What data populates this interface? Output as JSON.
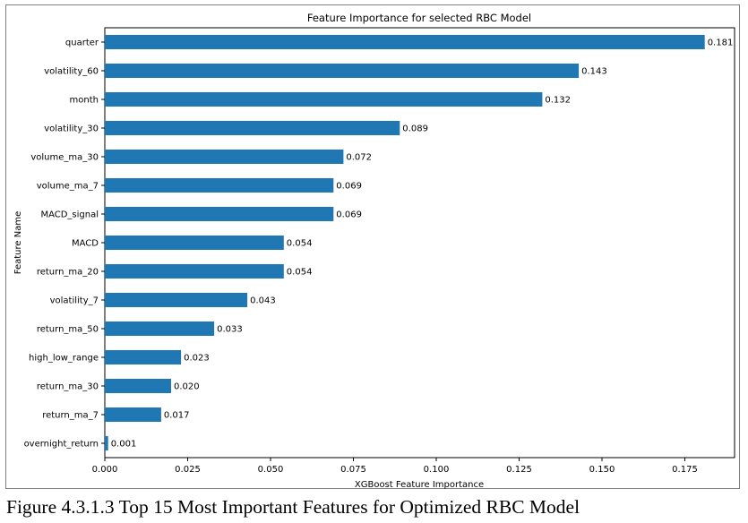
{
  "chart_data": {
    "type": "bar",
    "orientation": "horizontal",
    "title": "Feature Importance for selected RBC Model",
    "xlabel": "XGBoost Feature Importance",
    "ylabel": "Feature Name",
    "categories": [
      "quarter",
      "volatility_60",
      "month",
      "volatility_30",
      "volume_ma_30",
      "volume_ma_7",
      "MACD_signal",
      "MACD",
      "return_ma_20",
      "volatility_7",
      "return_ma_50",
      "high_low_range",
      "return_ma_30",
      "return_ma_7",
      "overnight_return"
    ],
    "values": [
      0.181,
      0.143,
      0.132,
      0.089,
      0.072,
      0.069,
      0.069,
      0.054,
      0.054,
      0.043,
      0.033,
      0.023,
      0.02,
      0.017,
      0.001
    ],
    "data_labels": [
      "0.181",
      "0.143",
      "0.132",
      "0.089",
      "0.072",
      "0.069",
      "0.069",
      "0.054",
      "0.054",
      "0.043",
      "0.033",
      "0.023",
      "0.020",
      "0.017",
      "0.001"
    ],
    "xticks": [
      "0.000",
      "0.025",
      "0.050",
      "0.075",
      "0.100",
      "0.125",
      "0.150",
      "0.175"
    ],
    "xlim": [
      0,
      0.19
    ],
    "grid": false,
    "legend": "none",
    "bar_color": "#1f77b4"
  },
  "caption": "Figure 4.3.1.3 Top 15 Most Important Features for Optimized RBC Model"
}
